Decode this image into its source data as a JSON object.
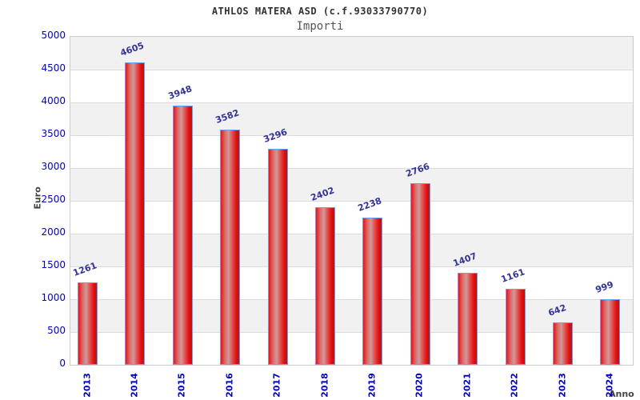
{
  "title": "ATHLOS MATERA ASD (c.f.93033790770)",
  "subtitle": "Importi",
  "chart_data": {
    "type": "bar",
    "title": "ATHLOS MATERA ASD (c.f.93033790770)",
    "subtitle": "Importi",
    "categories": [
      "2013",
      "2014",
      "2015",
      "2016",
      "2017",
      "2018",
      "2019",
      "2020",
      "2021",
      "2022",
      "2023",
      "2024"
    ],
    "values": [
      1261,
      4605,
      3948,
      3582,
      3296,
      2402,
      2238,
      2766,
      1407,
      1161,
      642,
      999
    ],
    "xlabel": "Anno",
    "ylabel": "Euro",
    "ylim": [
      0,
      5000
    ],
    "ytick_step": 500,
    "yticks": [
      0,
      500,
      1000,
      1500,
      2000,
      2500,
      3000,
      3500,
      4000,
      4500,
      5000
    ],
    "grid": true,
    "alternating_bands": true,
    "legend": "none",
    "colors": {
      "bar_fill_left": "#ee1212",
      "bar_fill_highlight": "#cf9a9a",
      "bar_fill_right": "#dd0f0f",
      "bar_border": "#6ca0f0",
      "value_label": "#333399",
      "axis_tick": "#0000cc",
      "band_gray": "#f1f1f1",
      "gridline": "#dcdcdc",
      "plot_border": "#cccccc",
      "title_color": "#333333",
      "subtitle_color": "#555555",
      "axis_title_color": "#444444"
    }
  }
}
